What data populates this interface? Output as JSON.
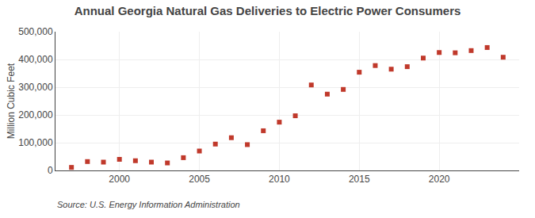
{
  "chart_data": {
    "type": "scatter",
    "title": "Annual Georgia Natural Gas Deliveries to Electric Power Consumers",
    "ylabel": "Million Cubic Feet",
    "annotations": [
      "Source: U.S. Energy Information Administration"
    ],
    "x": [
      1997,
      1998,
      1999,
      2000,
      2001,
      2002,
      2003,
      2004,
      2005,
      2006,
      2007,
      2008,
      2009,
      2010,
      2011,
      2012,
      2013,
      2014,
      2015,
      2016,
      2017,
      2018,
      2019,
      2020,
      2021,
      2022,
      2023,
      2024
    ],
    "values": [
      11000,
      32000,
      30000,
      40000,
      35000,
      30000,
      27000,
      46000,
      70000,
      95000,
      118000,
      93000,
      143000,
      174000,
      197000,
      308000,
      275000,
      292000,
      354000,
      378000,
      365000,
      374000,
      405000,
      425000,
      424000,
      432000,
      443000,
      408000
    ],
    "color": "#c0392b",
    "marker": "square",
    "xlim": [
      1996,
      2025
    ],
    "xticks": [
      2000,
      2005,
      2010,
      2015,
      2020
    ],
    "ylim": [
      0,
      500000
    ],
    "yticks": [
      0,
      {
        "value": 100000,
        "label": "100,000"
      },
      {
        "value": 200000,
        "label": "200,000"
      },
      {
        "value": 300000,
        "label": "300,000"
      },
      {
        "value": 400000,
        "label": "400,000"
      },
      {
        "value": 500000,
        "label": "500,000"
      }
    ],
    "grid": true
  }
}
